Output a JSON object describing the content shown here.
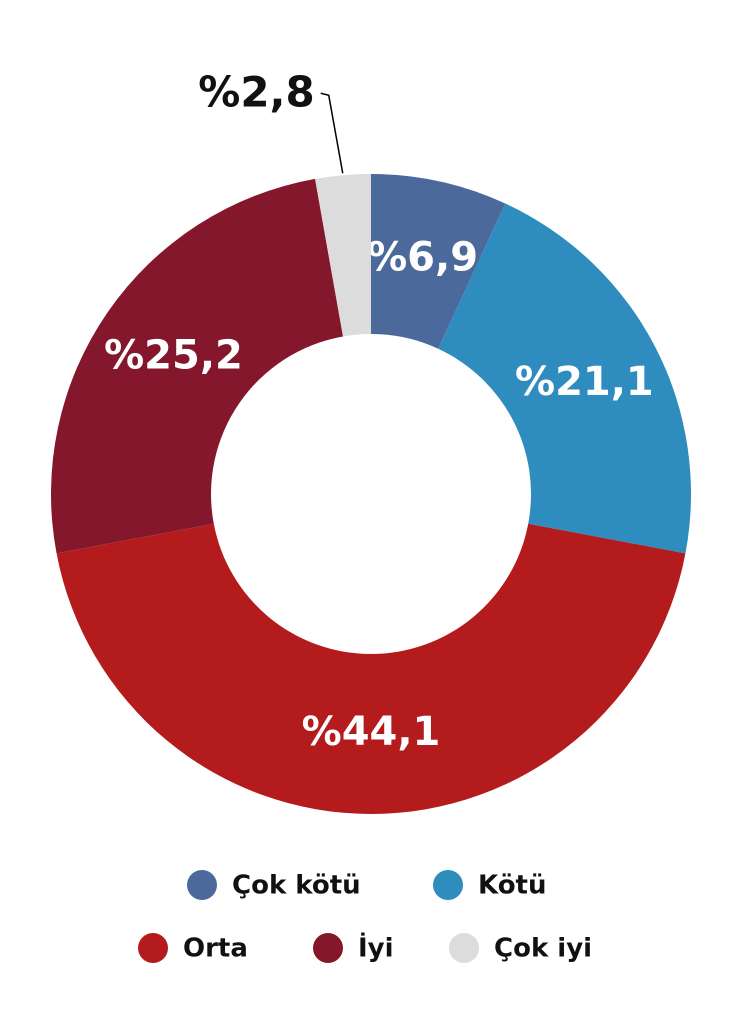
{
  "chart_data": {
    "type": "donut",
    "categories": [
      "Çok kötü",
      "Kötü",
      "Orta",
      "İyi",
      "Çok iyi"
    ],
    "values": [
      6.9,
      21.1,
      44.1,
      25.2,
      2.8
    ],
    "value_labels": [
      "%6,9",
      "%21,1",
      "%44,1",
      "%25,2",
      "%2,8"
    ],
    "colors": [
      "#4b6a9b",
      "#2f8cbf",
      "#b41b1d",
      "#85172d",
      "#dcdcdc"
    ],
    "legend": "bottom"
  }
}
